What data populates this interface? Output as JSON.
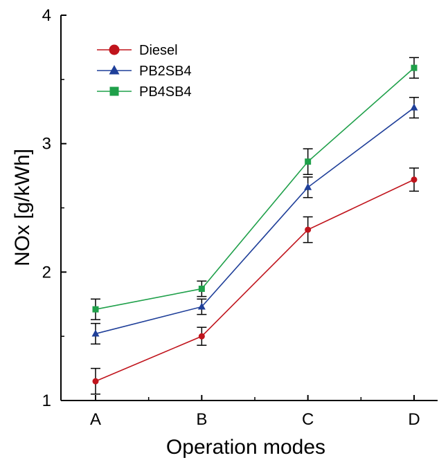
{
  "chart_data": {
    "type": "line",
    "title": "",
    "xlabel": "Operation modes",
    "ylabel": "NOx [g/kWh]",
    "categories": [
      "A",
      "B",
      "C",
      "D"
    ],
    "ylim": [
      1,
      4
    ],
    "yticks": [
      1,
      2,
      3,
      4
    ],
    "grid": false,
    "legend_position": "top-left",
    "series": [
      {
        "name": "Diesel",
        "color": "#c0141c",
        "marker": "circle",
        "values": [
          1.15,
          1.5,
          2.33,
          2.72
        ],
        "errors": [
          0.1,
          0.07,
          0.1,
          0.09
        ]
      },
      {
        "name": "PB2SB4",
        "color": "#1f3f99",
        "marker": "triangle",
        "values": [
          1.52,
          1.73,
          2.66,
          3.28
        ],
        "errors": [
          0.08,
          0.06,
          0.08,
          0.08
        ]
      },
      {
        "name": "PB4SB4",
        "color": "#1fa04a",
        "marker": "square",
        "values": [
          1.71,
          1.87,
          2.86,
          3.59
        ],
        "errors": [
          0.08,
          0.06,
          0.1,
          0.08
        ]
      }
    ]
  }
}
